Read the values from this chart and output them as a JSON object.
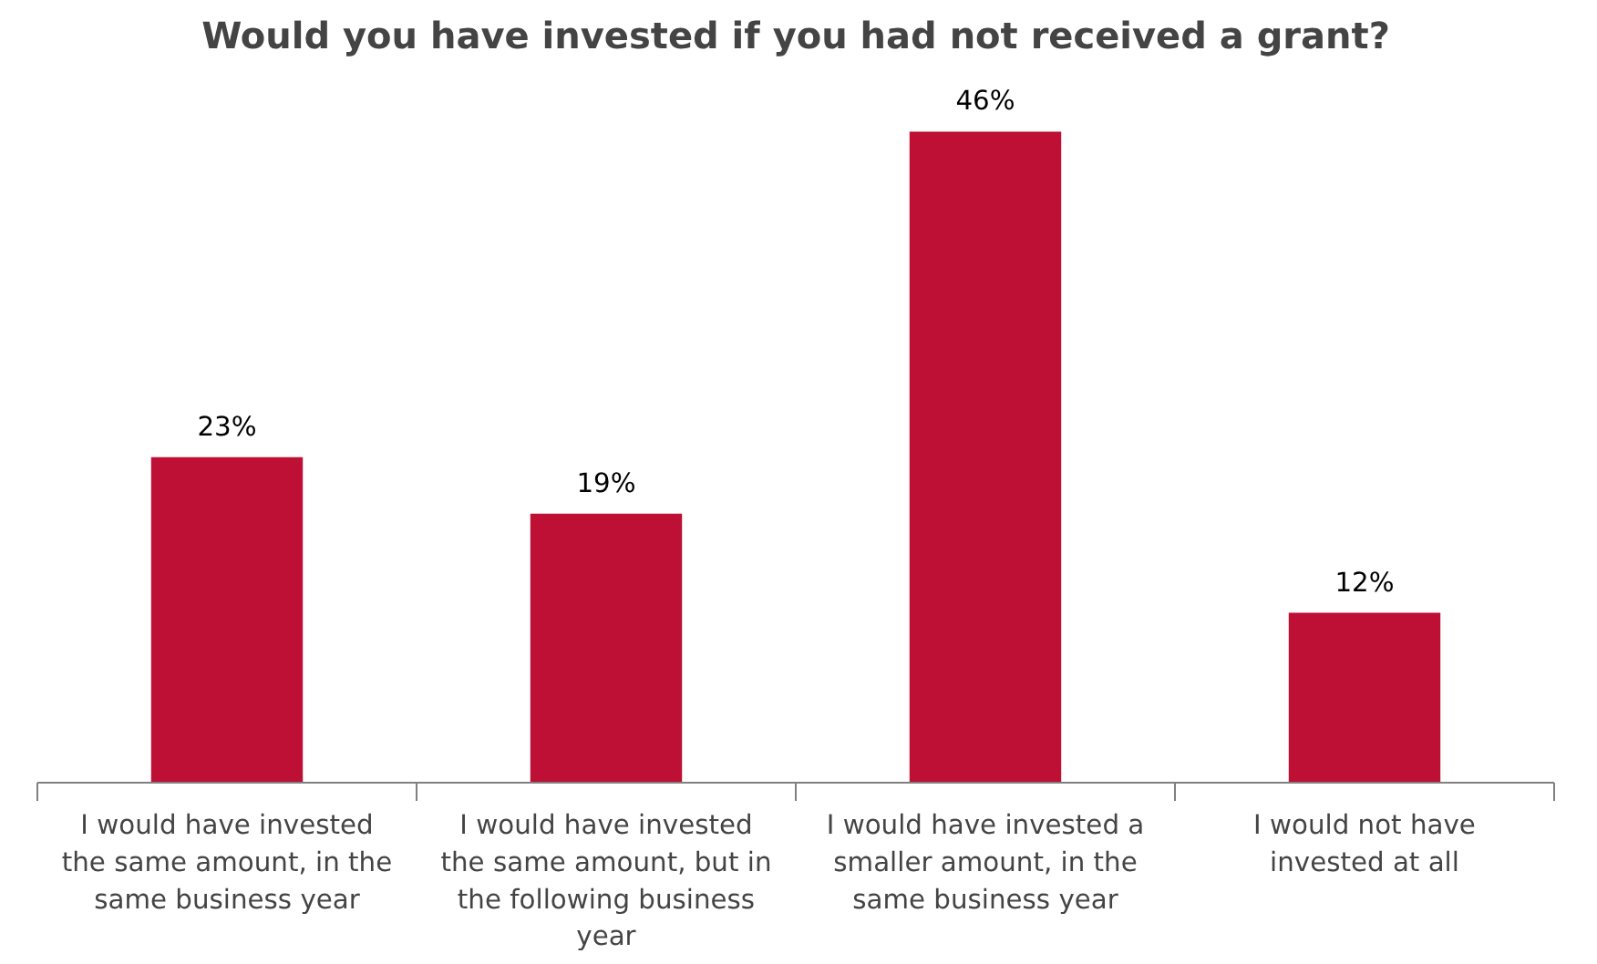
{
  "chart_data": {
    "type": "bar",
    "title": "Would you have invested if you had not received a grant?",
    "categories": [
      "I would have invested the same amount, in the same business year",
      "I would have invested the same amount, but in the following business year",
      "I would have invested a smaller amount, in the same business year",
      "I would not have invested at all"
    ],
    "values": [
      23,
      19,
      46,
      12
    ],
    "value_labels": [
      "23%",
      "19%",
      "46%",
      "12%"
    ],
    "color": "#be0f34",
    "grid": false
  }
}
